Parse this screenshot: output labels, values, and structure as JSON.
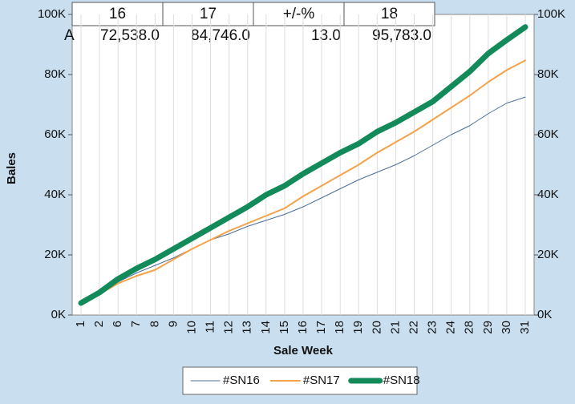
{
  "chart_data": {
    "type": "line",
    "x_label": "Sale Week",
    "y_label": "Bales",
    "categories": [
      "1",
      "2",
      "6",
      "7",
      "8",
      "9",
      "10",
      "11",
      "12",
      "13",
      "14",
      "15",
      "16",
      "17",
      "18",
      "19",
      "20",
      "21",
      "22",
      "23",
      "24",
      "28",
      "29",
      "30",
      "31"
    ],
    "series": [
      {
        "name": "#SN16",
        "color": "#4a6f9a",
        "width": 1,
        "values": [
          4000,
          7000,
          11000,
          14000,
          16500,
          19000,
          22000,
          25000,
          27000,
          29500,
          31500,
          33500,
          36000,
          39000,
          42000,
          45000,
          47500,
          50000,
          53000,
          56500,
          60000,
          63000,
          67000,
          70500,
          72500
        ]
      },
      {
        "name": "#SN17",
        "color": "#f4a24a",
        "width": 2,
        "values": [
          4000,
          7000,
          10500,
          13000,
          15000,
          18500,
          22000,
          25000,
          28000,
          30500,
          33000,
          35500,
          39500,
          43000,
          46500,
          50000,
          54000,
          57500,
          61000,
          65000,
          69000,
          73000,
          77500,
          81500,
          84700
        ]
      },
      {
        "name": "#SN18",
        "color": "#128a5a",
        "width": 7,
        "values": [
          4000,
          7500,
          12000,
          15500,
          18500,
          22000,
          25500,
          29000,
          32500,
          36000,
          40000,
          43000,
          47000,
          50500,
          54000,
          57000,
          61000,
          64000,
          67500,
          71000,
          76000,
          81000,
          87000,
          91500,
          95800
        ]
      }
    ],
    "ylim": [
      0,
      100000
    ],
    "yticks": [
      {
        "value": 0,
        "label": "0K"
      },
      {
        "value": 20000,
        "label": "20K"
      },
      {
        "value": 40000,
        "label": "40K"
      },
      {
        "value": 60000,
        "label": "60K"
      },
      {
        "value": 80000,
        "label": "80K"
      },
      {
        "value": 100000,
        "label": "100K"
      }
    ],
    "y2lim": [
      0,
      100000
    ],
    "y2ticks": [
      {
        "value": 0,
        "label": "0K"
      },
      {
        "value": 20000,
        "label": "20K"
      },
      {
        "value": 40000,
        "label": "40K"
      },
      {
        "value": 60000,
        "label": "60K"
      },
      {
        "value": 80000,
        "label": "80K"
      },
      {
        "value": 100000,
        "label": "100K"
      }
    ],
    "grid": true,
    "legend": "bottom"
  },
  "table": {
    "header": [
      "16",
      "17",
      "+/-%",
      "18"
    ],
    "rows": [
      [
        "A",
        "72,538.0",
        "84,746.0",
        "13.0",
        "95,783.0"
      ]
    ]
  }
}
